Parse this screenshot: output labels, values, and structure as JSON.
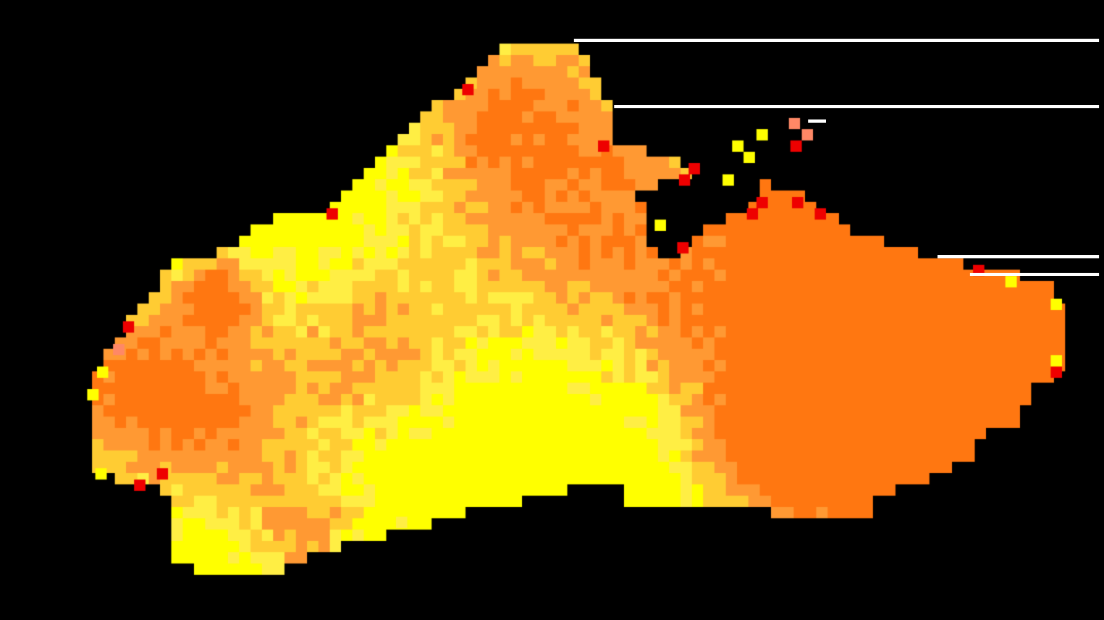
{
  "map": {
    "background": "#000000",
    "palette": {
      "yellow": "#ffff00",
      "pale_yellow": "#ffee44",
      "light_orange": "#ffcc33",
      "orange": "#ff9933",
      "deep_orange": "#ff7711",
      "salmon": "#ff8866",
      "red": "#ee0000"
    }
  },
  "overlay": {
    "rule_color": "#ffffff"
  }
}
